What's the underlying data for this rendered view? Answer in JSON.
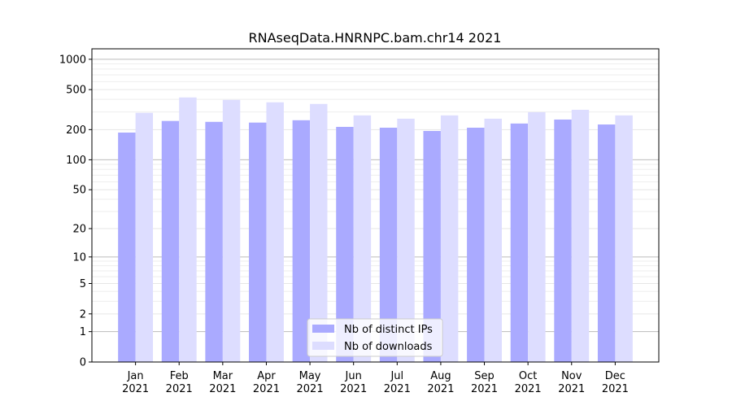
{
  "chart_data": {
    "type": "bar",
    "title": "RNAseqData.HNRNPC.bam.chr14 2021",
    "xlabel": "",
    "ylabel": "",
    "yscale": "log(1+y)",
    "ylim": [
      0,
      1270
    ],
    "yticks": [
      0,
      1,
      2,
      5,
      10,
      20,
      50,
      100,
      200,
      500,
      1000
    ],
    "categories": [
      "Jan\n2021",
      "Feb\n2021",
      "Mar\n2021",
      "Apr\n2021",
      "May\n2021",
      "Jun\n2021",
      "Jul\n2021",
      "Aug\n2021",
      "Sep\n2021",
      "Oct\n2021",
      "Nov\n2021",
      "Dec\n2021"
    ],
    "series": [
      {
        "name": "Nb of distinct IPs",
        "color": "#aaaaff",
        "values": [
          187,
          244,
          239,
          235,
          248,
          213,
          209,
          194,
          209,
          230,
          252,
          225
        ]
      },
      {
        "name": "Nb of downloads",
        "color": "#ddddff",
        "values": [
          294,
          418,
          395,
          374,
          360,
          277,
          257,
          277,
          257,
          298,
          315,
          277
        ]
      }
    ],
    "grid": true,
    "legend": "lower center"
  }
}
